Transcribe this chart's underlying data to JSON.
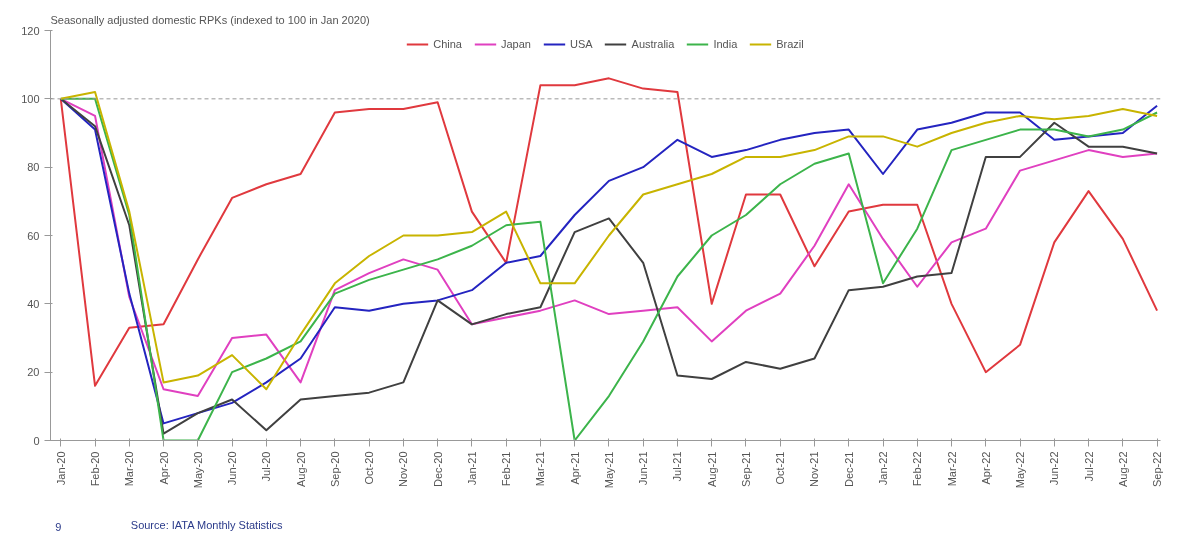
{
  "chart_data": {
    "type": "line",
    "title": "Seasonally adjusted domestic RPKs (indexed to 100 in Jan 2020)",
    "categories": [
      "Jan-20",
      "Feb-20",
      "Mar-20",
      "Apr-20",
      "May-20",
      "Jun-20",
      "Jul-20",
      "Aug-20",
      "Sep-20",
      "Oct-20",
      "Nov-20",
      "Dec-20",
      "Jan-21",
      "Feb-21",
      "Mar-21",
      "Apr-21",
      "May-21",
      "Jun-21",
      "Jul-21",
      "Aug-21",
      "Sep-21",
      "Oct-21",
      "Nov-21",
      "Dec-21",
      "Jan-22",
      "Feb-22",
      "Mar-22",
      "Apr-22",
      "May-22",
      "Jun-22",
      "Jul-22",
      "Aug-22",
      "Sep-22"
    ],
    "series": [
      {
        "name": "China",
        "color": "#e0393e",
        "values": [
          100,
          16,
          33,
          34,
          53,
          71,
          75,
          78,
          96,
          97,
          97,
          99,
          67,
          52,
          104,
          104,
          106,
          103,
          102,
          40,
          72,
          72,
          51,
          67,
          69,
          69,
          40,
          20,
          28,
          58,
          73,
          59,
          38
        ]
      },
      {
        "name": "Japan",
        "color": "#e040c0",
        "values": [
          100,
          95,
          42,
          15,
          13,
          30,
          31,
          17,
          44,
          49,
          53,
          50,
          34,
          36,
          38,
          41,
          37,
          38,
          39,
          29,
          38,
          43,
          57,
          75,
          59,
          45,
          58,
          62,
          79,
          82,
          85,
          83,
          84
        ]
      },
      {
        "name": "USA",
        "color": "#2424c0",
        "values": [
          100,
          91,
          43,
          5,
          8,
          11,
          17,
          24,
          39,
          38,
          40,
          41,
          44,
          52,
          54,
          66,
          76,
          80,
          88,
          83,
          85,
          88,
          90,
          91,
          78,
          91,
          93,
          96,
          96,
          88,
          89,
          90,
          98
        ]
      },
      {
        "name": "Australia",
        "color": "#404040",
        "values": [
          100,
          92,
          63,
          2,
          8,
          12,
          3,
          12,
          13,
          14,
          17,
          41,
          34,
          37,
          39,
          61,
          65,
          52,
          19,
          18,
          23,
          21,
          24,
          44,
          45,
          48,
          49,
          83,
          83,
          93,
          86,
          86,
          84
        ]
      },
      {
        "name": "India",
        "color": "#3cb44b",
        "values": [
          100,
          100,
          66,
          0,
          0,
          20,
          24,
          29,
          43,
          47,
          50,
          53,
          57,
          63,
          64,
          0,
          13,
          29,
          48,
          60,
          66,
          75,
          81,
          84,
          46,
          62,
          85,
          88,
          91,
          91,
          89,
          91,
          96
        ]
      },
      {
        "name": "Brazil",
        "color": "#c8b400",
        "values": [
          100,
          102,
          67,
          17,
          19,
          25,
          15,
          31,
          46,
          54,
          60,
          60,
          61,
          67,
          46,
          46,
          60,
          72,
          75,
          78,
          83,
          83,
          85,
          89,
          89,
          86,
          90,
          93,
          95,
          94,
          95,
          97,
          95
        ]
      }
    ],
    "ylim": [
      0,
      120
    ],
    "yticks": [
      0,
      20,
      40,
      60,
      80,
      100,
      120
    ],
    "grid": false,
    "legend": "top",
    "marker": "none",
    "line_style": "solid",
    "ref_lines": [
      {
        "axis": "y",
        "value": 100,
        "label": null,
        "color": "#999999",
        "line_style": "dashed"
      }
    ],
    "annotations": [
      "9",
      "Source: IATA Monthly Statistics"
    ]
  }
}
